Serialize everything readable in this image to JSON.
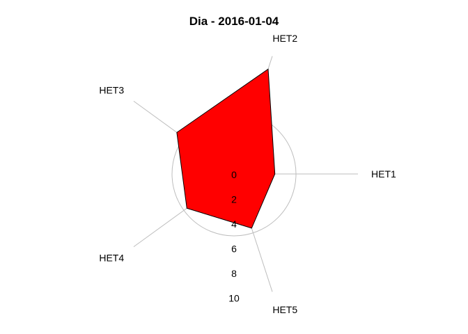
{
  "chart_data": {
    "type": "radar",
    "title": "Dia - 2016-01-04",
    "axes": [
      "HET1",
      "HET2",
      "HET3",
      "HET4",
      "HET5"
    ],
    "series": [
      {
        "values": [
          6.7,
          1.1,
          4.3,
          5.3,
          5.4
        ],
        "fill": "#ff0000",
        "stroke": "#000000"
      }
    ],
    "radial_ticks": [
      0,
      2,
      4,
      6,
      8,
      10
    ],
    "rlim": [
      0,
      10
    ],
    "radial_axis": "reversed",
    "grid_circles": [
      5,
      7,
      9
    ],
    "grid": true,
    "legend": "none"
  }
}
